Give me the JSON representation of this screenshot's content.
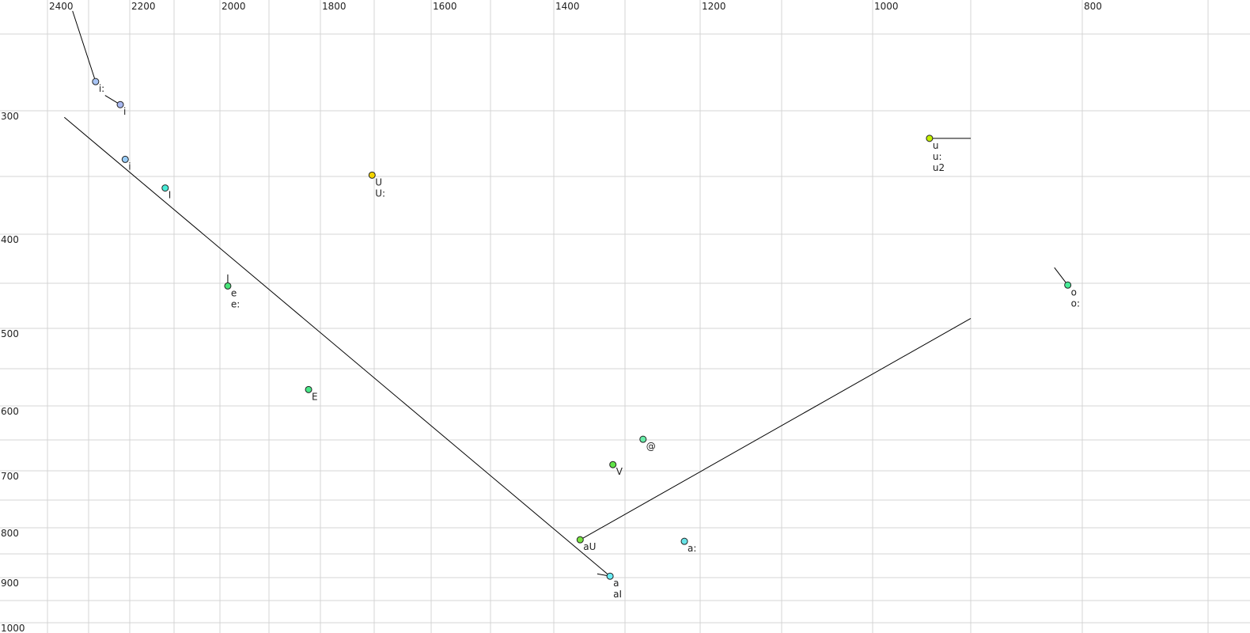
{
  "chart_data": {
    "type": "scatter",
    "title": "",
    "xlabel": "",
    "ylabel": "",
    "x_axis": {
      "reversed": true,
      "scale": "nonlinear",
      "range": [
        2400,
        700
      ],
      "tick_labels": [
        2400,
        2200,
        2000,
        1800,
        1600,
        1400,
        1200,
        1000,
        800
      ],
      "grid_step": 100
    },
    "y_axis": {
      "reversed": false,
      "scale": "nonlinear",
      "range": [
        250,
        1000
      ],
      "tick_labels": [
        300,
        400,
        500,
        600,
        700,
        800,
        900,
        1000
      ],
      "grid_step": 50
    },
    "grid": true,
    "points": [
      {
        "labels": [
          "i:"
        ],
        "x": 2283,
        "y": 281,
        "color": "#a8c4f4",
        "trajectory_from": [
          2339,
          235
        ]
      },
      {
        "labels": [
          "i"
        ],
        "x": 2223,
        "y": 296,
        "color": "#a8b8f0",
        "trajectory_from": [
          2260,
          290
        ]
      },
      {
        "labels": [
          "i"
        ],
        "x": 2211,
        "y": 337,
        "color": "#98ccf8"
      },
      {
        "labels": [
          "I"
        ],
        "x": 2120,
        "y": 360,
        "color": "#48ecd8"
      },
      {
        "labels": [
          "U",
          "U:"
        ],
        "x": 1704,
        "y": 349,
        "color": "#f4d400"
      },
      {
        "labels": [
          "u",
          "u:",
          "u2"
        ],
        "x": 942,
        "y": 321,
        "color": "#c4f000",
        "trajectory_from": [
          900,
          321
        ]
      },
      {
        "labels": [
          "e",
          "e:"
        ],
        "x": 1984,
        "y": 453,
        "color": "#48e478",
        "trajectory_from": [
          1984,
          441
        ]
      },
      {
        "labels": [
          "E"
        ],
        "x": 1823,
        "y": 578,
        "color": "#48e888"
      },
      {
        "labels": [
          "@"
        ],
        "x": 1276,
        "y": 649,
        "color": "#68eca8"
      },
      {
        "labels": [
          "V"
        ],
        "x": 1317,
        "y": 690,
        "color": "#60e448"
      },
      {
        "labels": [
          "aU"
        ],
        "x": 1363,
        "y": 823,
        "color": "#78e440",
        "trajectory_from": [
          900,
          489
        ]
      },
      {
        "labels": [
          "a:"
        ],
        "x": 1221,
        "y": 826,
        "color": "#68e4e8"
      },
      {
        "labels": [
          "a",
          "aI"
        ],
        "x": 1321,
        "y": 897,
        "color": "#68ecf4",
        "trajectory_from": [
          2359,
          305
        ]
      },
      {
        "labels": [
          "o",
          "o:"
        ],
        "x": 813,
        "y": 452,
        "color": "#48ec98",
        "trajectory_from": [
          825,
          434
        ]
      }
    ],
    "extra_trajectories": [
      {
        "from": [
          1339,
          892
        ],
        "to": [
          1321,
          897
        ]
      }
    ]
  }
}
